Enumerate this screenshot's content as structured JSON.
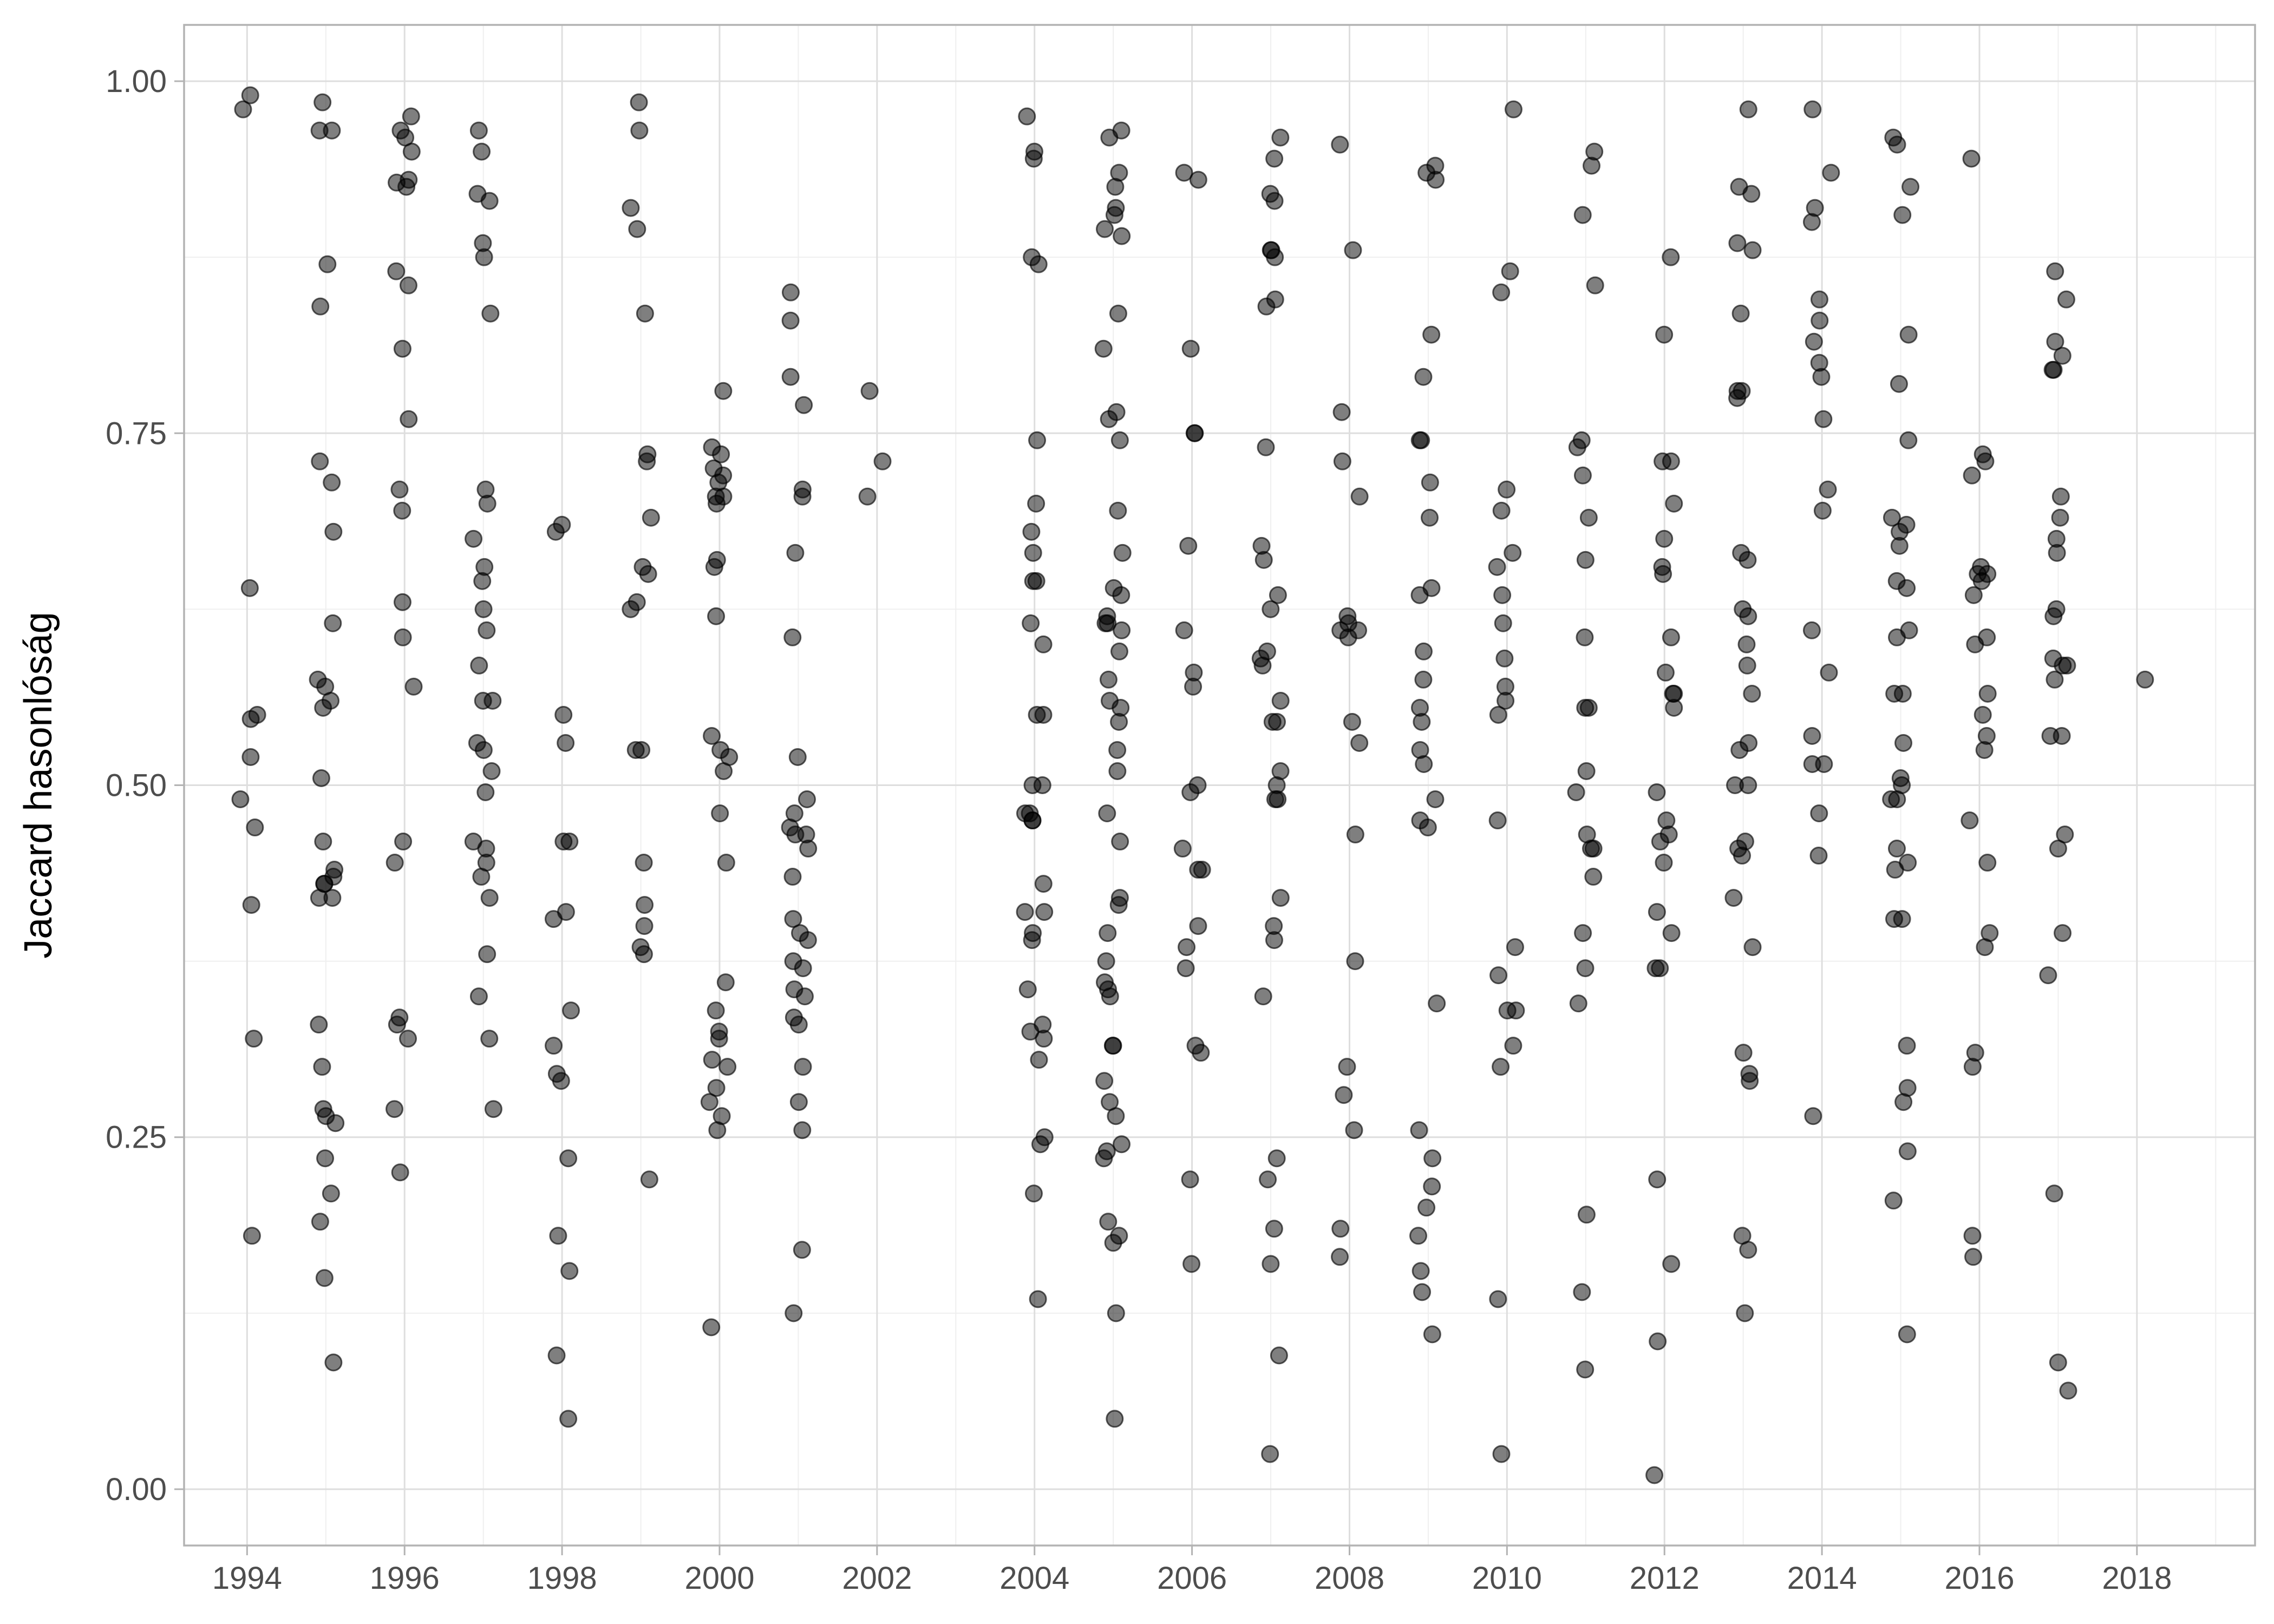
{
  "chart_data": {
    "type": "scatter",
    "title": "",
    "xlabel": "",
    "ylabel": "Jaccard hasonlóság",
    "xlim": [
      1993.2,
      2019.5
    ],
    "ylim": [
      -0.04,
      1.04
    ],
    "x_ticks": [
      1994,
      1996,
      1998,
      2000,
      2002,
      2004,
      2006,
      2008,
      2010,
      2012,
      2014,
      2016,
      2018
    ],
    "x_tick_labels": [
      "1994",
      "1996",
      "1998",
      "2000",
      "2002",
      "2004",
      "2006",
      "2008",
      "2010",
      "2012",
      "2014",
      "2016",
      "2018"
    ],
    "y_ticks": [
      0.0,
      0.25,
      0.5,
      0.75,
      1.0
    ],
    "y_tick_labels": [
      "0.00",
      "0.25",
      "0.50",
      "0.75",
      "1.00"
    ],
    "grid": true,
    "point_color": "#000000",
    "point_alpha": 0.5,
    "series": [
      {
        "x": 1994,
        "y": [
          0.99,
          0.98,
          0.64,
          0.55,
          0.547,
          0.52,
          0.49,
          0.47,
          0.415,
          0.32,
          0.18
        ]
      },
      {
        "x": 1995,
        "y": [
          0.985,
          0.965,
          0.965,
          0.87,
          0.84,
          0.73,
          0.715,
          0.68,
          0.615,
          0.575,
          0.57,
          0.56,
          0.555,
          0.505,
          0.46,
          0.44,
          0.435,
          0.43,
          0.43,
          0.42,
          0.42,
          0.33,
          0.3,
          0.27,
          0.265,
          0.26,
          0.235,
          0.21,
          0.19,
          0.15,
          0.09
        ]
      },
      {
        "x": 1996,
        "y": [
          0.975,
          0.965,
          0.96,
          0.95,
          0.93,
          0.928,
          0.925,
          0.865,
          0.855,
          0.81,
          0.76,
          0.71,
          0.695,
          0.63,
          0.605,
          0.57,
          0.46,
          0.445,
          0.335,
          0.33,
          0.32,
          0.27,
          0.225
        ]
      },
      {
        "x": 1997,
        "y": [
          0.965,
          0.95,
          0.92,
          0.915,
          0.885,
          0.875,
          0.835,
          0.71,
          0.7,
          0.675,
          0.655,
          0.645,
          0.625,
          0.61,
          0.585,
          0.56,
          0.56,
          0.53,
          0.525,
          0.51,
          0.495,
          0.46,
          0.455,
          0.445,
          0.435,
          0.42,
          0.38,
          0.35,
          0.32,
          0.27
        ]
      },
      {
        "x": 1998,
        "y": [
          0.685,
          0.68,
          0.55,
          0.53,
          0.46,
          0.46,
          0.41,
          0.405,
          0.34,
          0.315,
          0.295,
          0.29,
          0.235,
          0.18,
          0.155,
          0.095,
          0.05
        ]
      },
      {
        "x": 1999,
        "y": [
          0.985,
          0.965,
          0.91,
          0.895,
          0.835,
          0.735,
          0.73,
          0.69,
          0.655,
          0.65,
          0.63,
          0.625,
          0.525,
          0.525,
          0.445,
          0.415,
          0.4,
          0.385,
          0.38,
          0.22
        ]
      },
      {
        "x": 2000,
        "y": [
          0.78,
          0.74,
          0.735,
          0.725,
          0.72,
          0.715,
          0.705,
          0.705,
          0.7,
          0.66,
          0.655,
          0.62,
          0.535,
          0.525,
          0.52,
          0.51,
          0.48,
          0.445,
          0.36,
          0.34,
          0.325,
          0.32,
          0.305,
          0.3,
          0.285,
          0.275,
          0.265,
          0.255,
          0.115
        ]
      },
      {
        "x": 2001,
        "y": [
          0.85,
          0.83,
          0.79,
          0.77,
          0.71,
          0.705,
          0.665,
          0.605,
          0.52,
          0.49,
          0.48,
          0.47,
          0.465,
          0.465,
          0.455,
          0.435,
          0.405,
          0.395,
          0.39,
          0.375,
          0.37,
          0.355,
          0.35,
          0.335,
          0.33,
          0.3,
          0.275,
          0.255,
          0.17,
          0.125
        ]
      },
      {
        "x": 2002,
        "y": [
          0.78,
          0.73,
          0.705
        ]
      },
      {
        "x": 2004,
        "y": [
          0.975,
          0.95,
          0.945,
          0.875,
          0.87,
          0.745,
          0.7,
          0.68,
          0.665,
          0.645,
          0.645,
          0.615,
          0.6,
          0.55,
          0.55,
          0.5,
          0.5,
          0.48,
          0.48,
          0.475,
          0.475,
          0.43,
          0.41,
          0.41,
          0.395,
          0.39,
          0.355,
          0.33,
          0.325,
          0.32,
          0.305,
          0.25,
          0.245,
          0.21,
          0.135
        ]
      },
      {
        "x": 2005,
        "y": [
          0.965,
          0.96,
          0.935,
          0.925,
          0.91,
          0.905,
          0.895,
          0.89,
          0.835,
          0.81,
          0.765,
          0.76,
          0.745,
          0.695,
          0.665,
          0.64,
          0.635,
          0.62,
          0.615,
          0.615,
          0.61,
          0.595,
          0.575,
          0.56,
          0.555,
          0.545,
          0.525,
          0.51,
          0.48,
          0.46,
          0.42,
          0.415,
          0.395,
          0.375,
          0.36,
          0.355,
          0.35,
          0.315,
          0.315,
          0.29,
          0.275,
          0.265,
          0.245,
          0.24,
          0.235,
          0.19,
          0.18,
          0.175,
          0.125,
          0.05
        ]
      },
      {
        "x": 2006,
        "y": [
          0.935,
          0.93,
          0.81,
          0.75,
          0.75,
          0.67,
          0.61,
          0.58,
          0.57,
          0.5,
          0.495,
          0.455,
          0.44,
          0.44,
          0.4,
          0.385,
          0.37,
          0.315,
          0.31,
          0.22,
          0.16
        ]
      },
      {
        "x": 2007,
        "y": [
          0.96,
          0.945,
          0.92,
          0.915,
          0.88,
          0.88,
          0.875,
          0.845,
          0.84,
          0.74,
          0.67,
          0.66,
          0.635,
          0.625,
          0.595,
          0.59,
          0.585,
          0.56,
          0.545,
          0.545,
          0.51,
          0.5,
          0.49,
          0.49,
          0.42,
          0.4,
          0.39,
          0.35,
          0.235,
          0.22,
          0.185,
          0.16,
          0.095,
          0.025
        ]
      },
      {
        "x": 2008,
        "y": [
          0.955,
          0.88,
          0.765,
          0.73,
          0.705,
          0.62,
          0.615,
          0.61,
          0.61,
          0.605,
          0.545,
          0.53,
          0.465,
          0.375,
          0.3,
          0.28,
          0.255,
          0.185,
          0.165
        ]
      },
      {
        "x": 2009,
        "y": [
          0.94,
          0.935,
          0.93,
          0.82,
          0.79,
          0.745,
          0.745,
          0.715,
          0.69,
          0.64,
          0.635,
          0.595,
          0.575,
          0.555,
          0.545,
          0.525,
          0.515,
          0.49,
          0.475,
          0.47,
          0.345,
          0.255,
          0.235,
          0.215,
          0.2,
          0.18,
          0.155,
          0.14,
          0.11
        ]
      },
      {
        "x": 2010,
        "y": [
          0.98,
          0.865,
          0.85,
          0.71,
          0.695,
          0.665,
          0.655,
          0.635,
          0.615,
          0.59,
          0.57,
          0.56,
          0.55,
          0.475,
          0.385,
          0.365,
          0.34,
          0.34,
          0.315,
          0.3,
          0.135,
          0.025
        ]
      },
      {
        "x": 2011,
        "y": [
          0.95,
          0.94,
          0.905,
          0.855,
          0.745,
          0.74,
          0.72,
          0.69,
          0.66,
          0.605,
          0.555,
          0.555,
          0.51,
          0.495,
          0.465,
          0.455,
          0.455,
          0.435,
          0.395,
          0.37,
          0.345,
          0.195,
          0.14,
          0.085
        ]
      },
      {
        "x": 2012,
        "y": [
          0.875,
          0.82,
          0.73,
          0.73,
          0.7,
          0.675,
          0.655,
          0.65,
          0.605,
          0.58,
          0.565,
          0.565,
          0.555,
          0.495,
          0.475,
          0.465,
          0.46,
          0.445,
          0.41,
          0.395,
          0.37,
          0.37,
          0.22,
          0.16,
          0.105,
          0.01
        ]
      },
      {
        "x": 2013,
        "y": [
          0.98,
          0.925,
          0.92,
          0.885,
          0.88,
          0.835,
          0.78,
          0.78,
          0.775,
          0.665,
          0.66,
          0.625,
          0.62,
          0.6,
          0.585,
          0.565,
          0.53,
          0.525,
          0.5,
          0.5,
          0.46,
          0.455,
          0.45,
          0.42,
          0.385,
          0.31,
          0.295,
          0.29,
          0.18,
          0.17,
          0.125
        ]
      },
      {
        "x": 2014,
        "y": [
          0.98,
          0.935,
          0.91,
          0.9,
          0.845,
          0.83,
          0.815,
          0.8,
          0.79,
          0.76,
          0.71,
          0.695,
          0.61,
          0.58,
          0.535,
          0.515,
          0.515,
          0.48,
          0.45,
          0.265
        ]
      },
      {
        "x": 2015,
        "y": [
          0.96,
          0.955,
          0.925,
          0.905,
          0.82,
          0.785,
          0.745,
          0.69,
          0.685,
          0.68,
          0.67,
          0.645,
          0.64,
          0.61,
          0.605,
          0.565,
          0.565,
          0.53,
          0.505,
          0.5,
          0.49,
          0.49,
          0.455,
          0.445,
          0.44,
          0.405,
          0.405,
          0.315,
          0.285,
          0.275,
          0.24,
          0.205,
          0.11
        ]
      },
      {
        "x": 2016,
        "y": [
          0.945,
          0.735,
          0.73,
          0.72,
          0.655,
          0.65,
          0.65,
          0.645,
          0.635,
          0.605,
          0.6,
          0.565,
          0.55,
          0.535,
          0.525,
          0.475,
          0.445,
          0.395,
          0.385,
          0.31,
          0.3,
          0.18,
          0.165
        ]
      },
      {
        "x": 2017,
        "y": [
          0.865,
          0.845,
          0.815,
          0.805,
          0.795,
          0.795,
          0.705,
          0.69,
          0.675,
          0.665,
          0.625,
          0.62,
          0.59,
          0.585,
          0.585,
          0.575,
          0.535,
          0.535,
          0.465,
          0.455,
          0.395,
          0.365,
          0.21,
          0.09,
          0.07
        ]
      },
      {
        "x": 2018,
        "y": [
          0.575
        ]
      }
    ]
  }
}
